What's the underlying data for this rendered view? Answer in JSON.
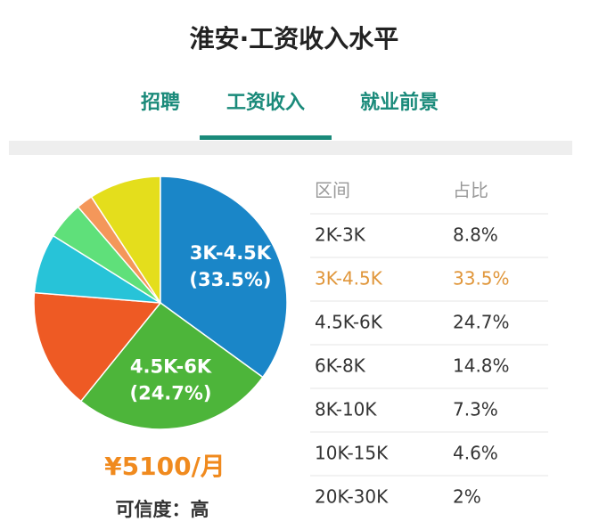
{
  "header": {
    "title": "淮安·工资收入水平"
  },
  "tabs": {
    "items": [
      "招聘",
      "工资收入",
      "就业前景"
    ],
    "active": 1
  },
  "chart_data": {
    "type": "pie",
    "categories": [
      "2K-3K",
      "3K-4.5K",
      "4.5K-6K",
      "6K-8K",
      "8K-10K",
      "10K-15K",
      "20K-30K"
    ],
    "values": [
      8.8,
      33.5,
      24.7,
      14.8,
      7.3,
      4.6,
      2
    ],
    "value_labels": [
      "8.8%",
      "33.5%",
      "24.7%",
      "14.8%",
      "7.3%",
      "4.6%",
      "2%"
    ],
    "colors": [
      "#e4de1c",
      "#1a86c8",
      "#4db53a",
      "#ee5a24",
      "#27c3d8",
      "#5fe07a",
      "#f4975a"
    ],
    "slice_labels": [
      null,
      "(33.5%)",
      "(24.7%)",
      null,
      null,
      null,
      null
    ]
  },
  "table": {
    "headers": [
      "区间",
      "占比"
    ],
    "highlight": 1
  },
  "summary": {
    "salary": "¥5100/月",
    "confidence": "可信度：高"
  }
}
